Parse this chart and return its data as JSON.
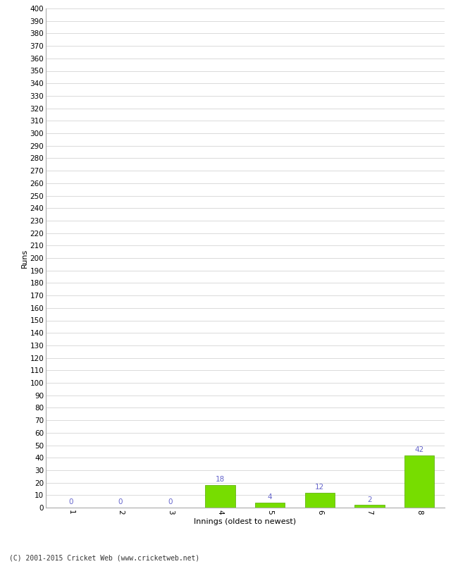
{
  "categories": [
    "1",
    "2",
    "3",
    "4",
    "5",
    "6",
    "7",
    "8"
  ],
  "values": [
    0,
    0,
    0,
    18,
    4,
    12,
    2,
    42
  ],
  "bar_color": "#77dd00",
  "bar_edge_color": "#55aa00",
  "xlabel": "Innings (oldest to newest)",
  "ylabel": "Runs",
  "ylim": [
    0,
    400
  ],
  "yticks": [
    0,
    10,
    20,
    30,
    40,
    50,
    60,
    70,
    80,
    90,
    100,
    110,
    120,
    130,
    140,
    150,
    160,
    170,
    180,
    190,
    200,
    210,
    220,
    230,
    240,
    250,
    260,
    270,
    280,
    290,
    300,
    310,
    320,
    330,
    340,
    350,
    360,
    370,
    380,
    390,
    400
  ],
  "label_color": "#6666cc",
  "background_color": "#ffffff",
  "grid_color": "#cccccc",
  "footer_text": "(C) 2001-2015 Cricket Web (www.cricketweb.net)",
  "axis_label_fontsize": 8,
  "tick_fontsize": 7.5,
  "annotation_fontsize": 7.5,
  "footer_fontsize": 7
}
